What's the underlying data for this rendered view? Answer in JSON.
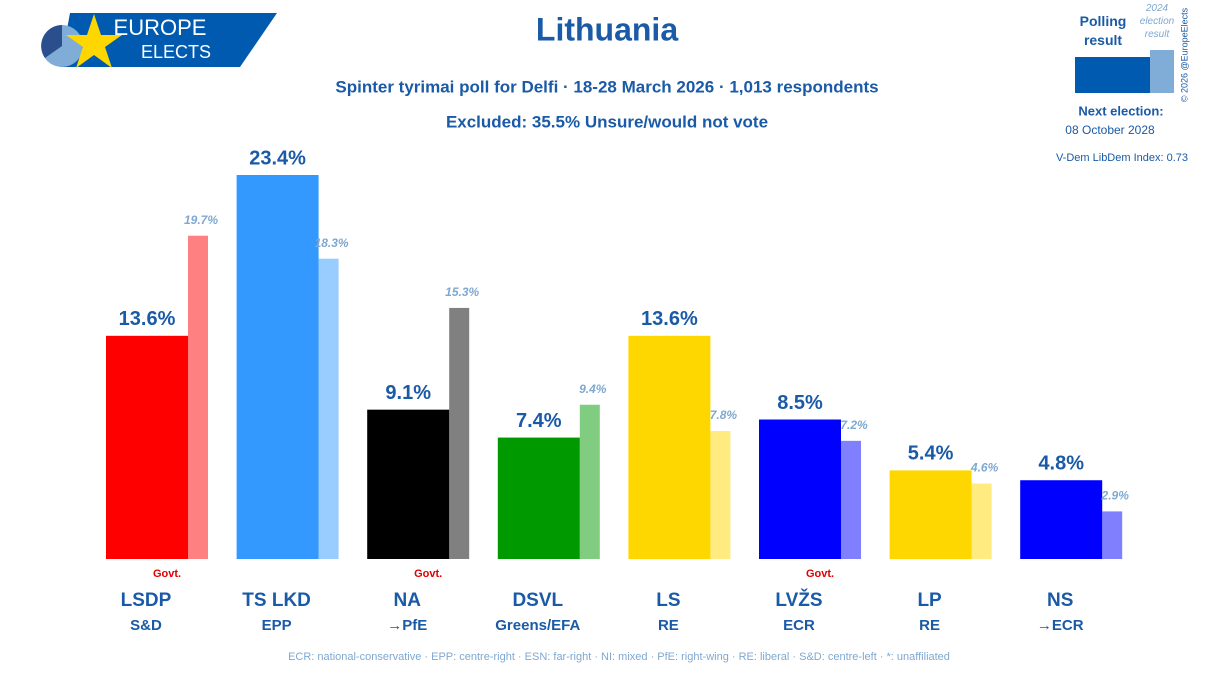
{
  "chart_data": {
    "type": "bar",
    "title": "Lithuania",
    "subtitle": "Spinter tyrimai poll for Delfi · 18-28 March 2026 · 1,013 respondents",
    "excluded": "Excluded: 35.5% Unsure/would not vote",
    "logo": [
      "EUROPE",
      "ELECTS"
    ],
    "next_election_label": "Next election:",
    "next_election_date": "08 October 2028",
    "vdem": "V-Dem LibDem Index: 0.73",
    "copyright": "© 2026 @EuropeElects",
    "footnote": "ECR: national-conservative · EPP: centre-right · ESN: far-right · NI: mixed · PfE: right-wing · RE: liberal · S&D: centre-left · *: unaffiliated",
    "categories": [
      "LSDP",
      "TS LKD",
      "NA",
      "DSVL",
      "LS",
      "LVŽS",
      "LP",
      "NS"
    ],
    "groups": [
      "S&D",
      "EPP",
      "→PfE",
      "Greens/EFA",
      "RE",
      "ECR",
      "RE",
      "→ECR"
    ],
    "govt": [
      "Govt.",
      null,
      "Govt.",
      null,
      null,
      "Govt.",
      null,
      null
    ],
    "series": [
      {
        "name": "Polling result",
        "color": "#005bb0",
        "colors": [
          "#ff0000",
          "#3399ff",
          "#000000",
          "#009900",
          "#ffd700",
          "#0000ff",
          "#ffd700",
          "#0000ff"
        ],
        "values": [
          13.6,
          23.4,
          9.1,
          7.4,
          13.6,
          8.5,
          5.4,
          4.8
        ],
        "value_labels": [
          "13.6%",
          "23.4%",
          "9.1%",
          "7.4%",
          "13.6%",
          "8.5%",
          "5.4%",
          "4.8%"
        ]
      },
      {
        "name": "2024 election result",
        "color": "#7fadd8",
        "colors": [
          "#ff8080",
          "#99ccff",
          "#808080",
          "#80cc80",
          "#ffeb80",
          "#8080ff",
          "#ffeb80",
          "#8080ff"
        ],
        "values": [
          19.7,
          18.3,
          15.3,
          9.4,
          7.8,
          7.2,
          4.6,
          2.9
        ],
        "value_labels": [
          "19.7%",
          "18.3%",
          "15.3%",
          "9.4%",
          "7.8%",
          "7.2%",
          "4.6%",
          "2.9%"
        ]
      }
    ]
  }
}
